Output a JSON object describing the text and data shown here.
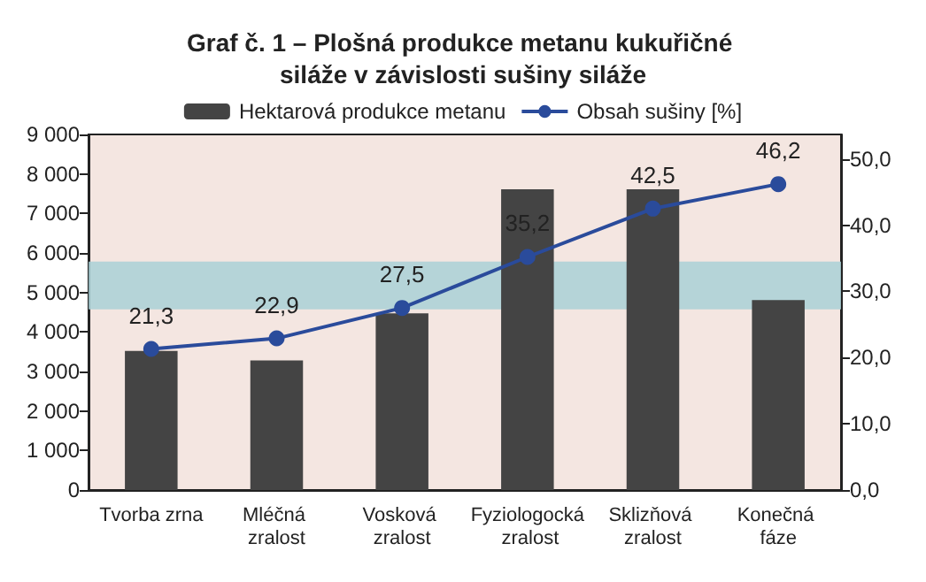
{
  "chart_data": {
    "type": "bar",
    "title": "Graf č. 1 – Plošná produkce metanu kukuřičné siláže v závislosti sušiny siláže",
    "categories": [
      "Tvorba zrna",
      "Mléčná zralost",
      "Vosková zralost",
      "Fyziologocká zralost",
      "Sklizňová zralost",
      "Konečná fáze"
    ],
    "series": [
      {
        "name": "Hektarová produkce metanu",
        "color": "#444444",
        "values": [
          3520,
          3280,
          4470,
          7610,
          7610,
          4810
        ]
      },
      {
        "name": "Obsah sušiny [%]",
        "type": "line",
        "axis": "y2",
        "color": "#2a4b9b",
        "values": [
          21.3,
          22.9,
          27.5,
          35.2,
          42.5,
          46.2
        ],
        "value_labels": [
          "21,3",
          "22,9",
          "27,5",
          "35,2",
          "42,5",
          "46,2"
        ]
      }
    ],
    "ylim": [
      0,
      9000
    ],
    "yticks": [
      {
        "value": 0,
        "label": "0"
      },
      {
        "value": 1000,
        "label": "1 000"
      },
      {
        "value": 2000,
        "label": "2 000"
      },
      {
        "value": 3000,
        "label": "3 000"
      },
      {
        "value": 4000,
        "label": "4 000"
      },
      {
        "value": 5000,
        "label": "5 000"
      },
      {
        "value": 6000,
        "label": "6 000"
      },
      {
        "value": 7000,
        "label": "7 000"
      },
      {
        "value": 8000,
        "label": "8 000"
      },
      {
        "value": 9000,
        "label": "9 000"
      }
    ],
    "y2lim": [
      0,
      53.7
    ],
    "y2ticks": [
      {
        "value": 0,
        "label": "0,0"
      },
      {
        "value": 10,
        "label": "10,0"
      },
      {
        "value": 20,
        "label": "20,0"
      },
      {
        "value": 30,
        "label": "30,0"
      },
      {
        "value": 40,
        "label": "40,0"
      },
      {
        "value": 50,
        "label": "50,0"
      }
    ],
    "bands": [
      {
        "axis": "y2",
        "from": 27.3,
        "to": 34.5,
        "color": "#a9d0d6"
      }
    ],
    "legend": "top",
    "marker": "circle",
    "grid": false
  }
}
